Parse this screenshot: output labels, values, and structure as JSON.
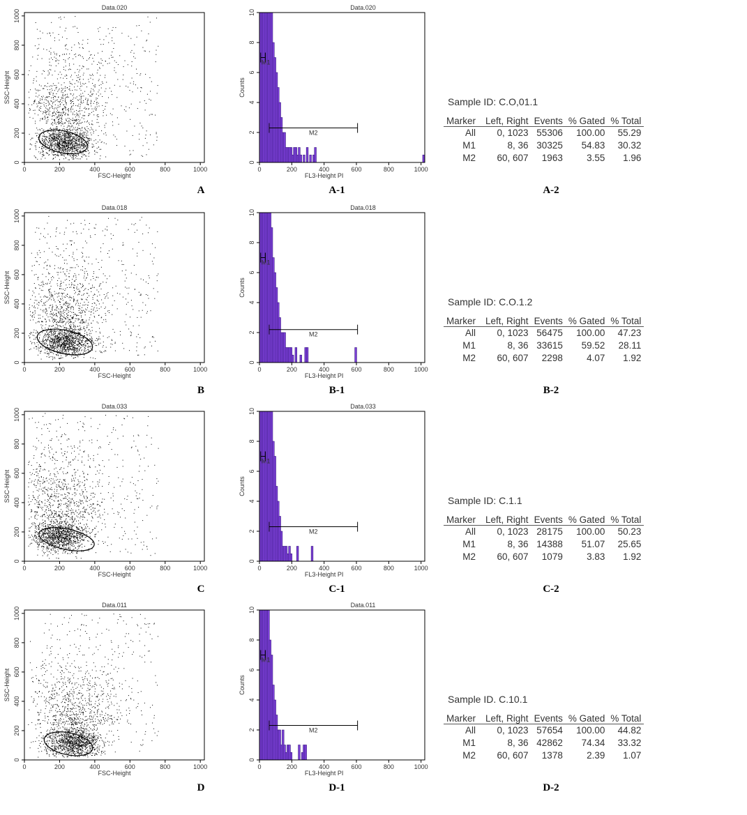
{
  "panels": [
    {
      "scatter": {
        "title": "Data.020",
        "xlabel": "FSC-Height",
        "ylabel": "SSC-Height",
        "xticks": [
          "0",
          "200",
          "400",
          "600",
          "800",
          "1000"
        ],
        "yticks": [
          "0",
          "200",
          "400",
          "600",
          "800",
          "1000"
        ]
      },
      "hist": {
        "title": "Data.020",
        "xlabel": "FL3-Height PI",
        "ylabel": "Counts",
        "xticks": [
          "0",
          "200",
          "400",
          "600",
          "800",
          "1000"
        ],
        "yticks": [
          "0",
          "2",
          "4",
          "6",
          "8",
          "10"
        ],
        "m1_label": "M1",
        "m2_label": "M2"
      },
      "labels": {
        "scatter": "A",
        "hist": "A-1",
        "table": "A-2"
      },
      "table": {
        "sample_id": "Sample ID: C.O,01.1",
        "headers": [
          "Marker",
          "Left, Right",
          "Events",
          "% Gated",
          "% Total"
        ],
        "rows": [
          [
            "All",
            "0, 1023",
            "55306",
            "100.00",
            "55.29"
          ],
          [
            "M1",
            "8, 36",
            "30325",
            "54.83",
            "30.32"
          ],
          [
            "M2",
            "60, 607",
            "1963",
            "3.55",
            "1.96"
          ]
        ]
      }
    },
    {
      "scatter": {
        "title": "Data.018",
        "xlabel": "FSC-Height",
        "ylabel": "SSC-Height",
        "xticks": [
          "0",
          "200",
          "400",
          "600",
          "800",
          "1000"
        ],
        "yticks": [
          "0",
          "200",
          "400",
          "600",
          "800",
          "1000"
        ]
      },
      "hist": {
        "title": "Data.018",
        "xlabel": "FL3-Height PI",
        "ylabel": "Counts",
        "xticks": [
          "0",
          "200",
          "400",
          "600",
          "800",
          "1000"
        ],
        "yticks": [
          "0",
          "2",
          "4",
          "6",
          "8",
          "10"
        ],
        "m1_label": "M1",
        "m2_label": "M2"
      },
      "labels": {
        "scatter": "B",
        "hist": "B-1",
        "table": "B-2"
      },
      "table": {
        "sample_id": "Sample ID: C.O.1.2",
        "headers": [
          "Marker",
          "Left, Right",
          "Events",
          "% Gated",
          "% Total"
        ],
        "rows": [
          [
            "All",
            "0, 1023",
            "56475",
            "100.00",
            "47.23"
          ],
          [
            "M1",
            "8, 36",
            "33615",
            "59.52",
            "28.11"
          ],
          [
            "M2",
            "60, 607",
            "2298",
            "4.07",
            "1.92"
          ]
        ]
      }
    },
    {
      "scatter": {
        "title": "Data.033",
        "xlabel": "FSC-Height",
        "ylabel": "SSC-Height",
        "xticks": [
          "0",
          "200",
          "400",
          "600",
          "800",
          "1000"
        ],
        "yticks": [
          "0",
          "200",
          "400",
          "600",
          "800",
          "1000"
        ]
      },
      "hist": {
        "title": "Data.033",
        "xlabel": "FL3-Height PI",
        "ylabel": "Counts",
        "xticks": [
          "0",
          "200",
          "400",
          "600",
          "800",
          "1000"
        ],
        "yticks": [
          "0",
          "2",
          "4",
          "6",
          "8",
          "10"
        ],
        "m1_label": "M1",
        "m2_label": "M2"
      },
      "labels": {
        "scatter": "C",
        "hist": "C-1",
        "table": "C-2"
      },
      "table": {
        "sample_id": "Sample ID: C.1.1",
        "headers": [
          "Marker",
          "Left, Right",
          "Events",
          "% Gated",
          "% Total"
        ],
        "rows": [
          [
            "All",
            "0, 1023",
            "28175",
            "100.00",
            "50.23"
          ],
          [
            "M1",
            "8, 36",
            "14388",
            "51.07",
            "25.65"
          ],
          [
            "M2",
            "60, 607",
            "1079",
            "3.83",
            "1.92"
          ]
        ]
      }
    },
    {
      "scatter": {
        "title": "Data.011",
        "xlabel": "FSC-Height",
        "ylabel": "SSC-Height",
        "xticks": [
          "0",
          "200",
          "400",
          "600",
          "800",
          "1000"
        ],
        "yticks": [
          "0",
          "200",
          "400",
          "600",
          "800",
          "1000"
        ]
      },
      "hist": {
        "title": "Data.011",
        "xlabel": "FL3-Height PI",
        "ylabel": "Counts",
        "xticks": [
          "0",
          "200",
          "400",
          "600",
          "800",
          "1000"
        ],
        "yticks": [
          "0",
          "2",
          "4",
          "6",
          "8",
          "10"
        ],
        "m1_label": "M1",
        "m2_label": "M2"
      },
      "labels": {
        "scatter": "D",
        "hist": "D-1",
        "table": "D-2"
      },
      "table": {
        "sample_id": "Sample ID. C.10.1",
        "headers": [
          "Marker",
          "Left, Right",
          "Events",
          "% Gated",
          "% Total"
        ],
        "rows": [
          [
            "All",
            "0, 1023",
            "57654",
            "100.00",
            "44.82"
          ],
          [
            "M1",
            "8, 36",
            "42862",
            "74.34",
            "33.32"
          ],
          [
            "M2",
            "60, 607",
            "1378",
            "2.39",
            "1.07"
          ]
        ]
      }
    }
  ],
  "chart_data": [
    {
      "type": "scatter",
      "title": "Data.020",
      "xlabel": "FSC-Height",
      "ylabel": "SSC-Height",
      "xlim": [
        0,
        1023
      ],
      "ylim": [
        0,
        1023
      ],
      "dense_center": [
        230,
        140
      ],
      "gate_center": [
        220,
        140
      ],
      "gate_radius": [
        140,
        75
      ]
    },
    {
      "type": "bar",
      "title": "Data.020",
      "xlabel": "FL3-Height PI",
      "ylabel": "Counts",
      "xlim": [
        0,
        1023
      ],
      "ylim": [
        0,
        10
      ],
      "x": [
        10,
        20,
        30,
        40,
        50,
        60,
        70,
        80,
        90,
        100,
        110,
        120,
        130,
        140,
        150,
        160,
        170,
        180,
        190,
        200,
        210,
        220,
        230,
        240,
        250,
        260,
        280,
        300,
        320,
        340,
        350,
        1020
      ],
      "values": [
        10,
        10,
        10,
        10,
        10,
        10,
        10,
        10,
        8,
        7,
        6,
        5,
        4,
        3,
        2,
        2,
        1,
        1,
        1,
        1,
        0.5,
        1,
        1,
        0.5,
        1,
        0.5,
        0.5,
        1,
        0.5,
        0.5,
        1,
        0.5
      ],
      "markers": [
        {
          "name": "M1",
          "range": [
            8,
            36
          ],
          "y": 7
        },
        {
          "name": "M2",
          "range": [
            60,
            607
          ],
          "y": 2.3
        }
      ]
    },
    {
      "type": "scatter",
      "title": "Data.018",
      "xlabel": "FSC-Height",
      "ylabel": "SSC-Height",
      "xlim": [
        0,
        1023
      ],
      "ylim": [
        0,
        1023
      ],
      "dense_center": [
        230,
        150
      ],
      "gate_center": [
        230,
        140
      ],
      "gate_radius": [
        160,
        80
      ]
    },
    {
      "type": "bar",
      "title": "Data.018",
      "xlabel": "FL3-Height PI",
      "ylabel": "Counts",
      "xlim": [
        0,
        1023
      ],
      "ylim": [
        0,
        10
      ],
      "x": [
        10,
        20,
        30,
        40,
        50,
        60,
        70,
        80,
        90,
        100,
        110,
        120,
        130,
        140,
        150,
        160,
        170,
        180,
        190,
        200,
        210,
        230,
        260,
        290,
        300,
        600
      ],
      "values": [
        10,
        10,
        10,
        10,
        10,
        10,
        10,
        9,
        7,
        6,
        5,
        4,
        3,
        2,
        2,
        2,
        1,
        1,
        1,
        1,
        0.5,
        1,
        0.5,
        1,
        1,
        1
      ],
      "markers": [
        {
          "name": "M1",
          "range": [
            8,
            36
          ],
          "y": 7
        },
        {
          "name": "M2",
          "range": [
            60,
            607
          ],
          "y": 2.2
        }
      ]
    },
    {
      "type": "scatter",
      "title": "Data.033",
      "xlabel": "FSC-Height",
      "ylabel": "SSC-Height",
      "xlim": [
        0,
        1023
      ],
      "ylim": [
        0,
        1023
      ],
      "dense_center": [
        200,
        180
      ],
      "gate_center": [
        240,
        150
      ],
      "gate_radius": [
        160,
        70
      ]
    },
    {
      "type": "bar",
      "title": "Data.033",
      "xlabel": "FL3-Height PI",
      "ylabel": "Counts",
      "xlim": [
        0,
        1023
      ],
      "ylim": [
        0,
        10
      ],
      "x": [
        10,
        20,
        30,
        40,
        50,
        60,
        70,
        80,
        90,
        100,
        110,
        120,
        130,
        140,
        150,
        160,
        170,
        180,
        190,
        200,
        240,
        330
      ],
      "values": [
        10,
        10,
        10,
        10,
        10,
        10,
        10,
        10,
        8,
        7,
        5,
        4,
        3,
        2,
        1,
        1,
        1,
        0.5,
        1,
        0.5,
        1,
        1
      ],
      "markers": [
        {
          "name": "M1",
          "range": [
            8,
            36
          ],
          "y": 7
        },
        {
          "name": "M2",
          "range": [
            60,
            607
          ],
          "y": 2.3
        }
      ]
    },
    {
      "type": "scatter",
      "title": "Data.011",
      "xlabel": "FSC-Height",
      "ylabel": "SSC-Height",
      "xlim": [
        0,
        1023
      ],
      "ylim": [
        0,
        1023
      ],
      "dense_center": [
        280,
        120
      ],
      "gate_center": [
        250,
        110
      ],
      "gate_radius": [
        140,
        75
      ]
    },
    {
      "type": "bar",
      "title": "Data.011",
      "xlabel": "FL3-Height PI",
      "ylabel": "Counts",
      "xlim": [
        0,
        1023
      ],
      "ylim": [
        0,
        10
      ],
      "x": [
        10,
        20,
        30,
        40,
        50,
        60,
        70,
        80,
        90,
        100,
        110,
        120,
        130,
        140,
        150,
        160,
        170,
        180,
        190,
        200,
        250,
        270,
        280,
        290
      ],
      "values": [
        10,
        10,
        10,
        10,
        10,
        10,
        8,
        7,
        5,
        4,
        3,
        2,
        2,
        1,
        2,
        1,
        0.5,
        1,
        1,
        0.5,
        1,
        0.5,
        1,
        1
      ],
      "markers": [
        {
          "name": "M1",
          "range": [
            8,
            36
          ],
          "y": 7
        },
        {
          "name": "M2",
          "range": [
            60,
            607
          ],
          "y": 2.3
        }
      ]
    }
  ]
}
